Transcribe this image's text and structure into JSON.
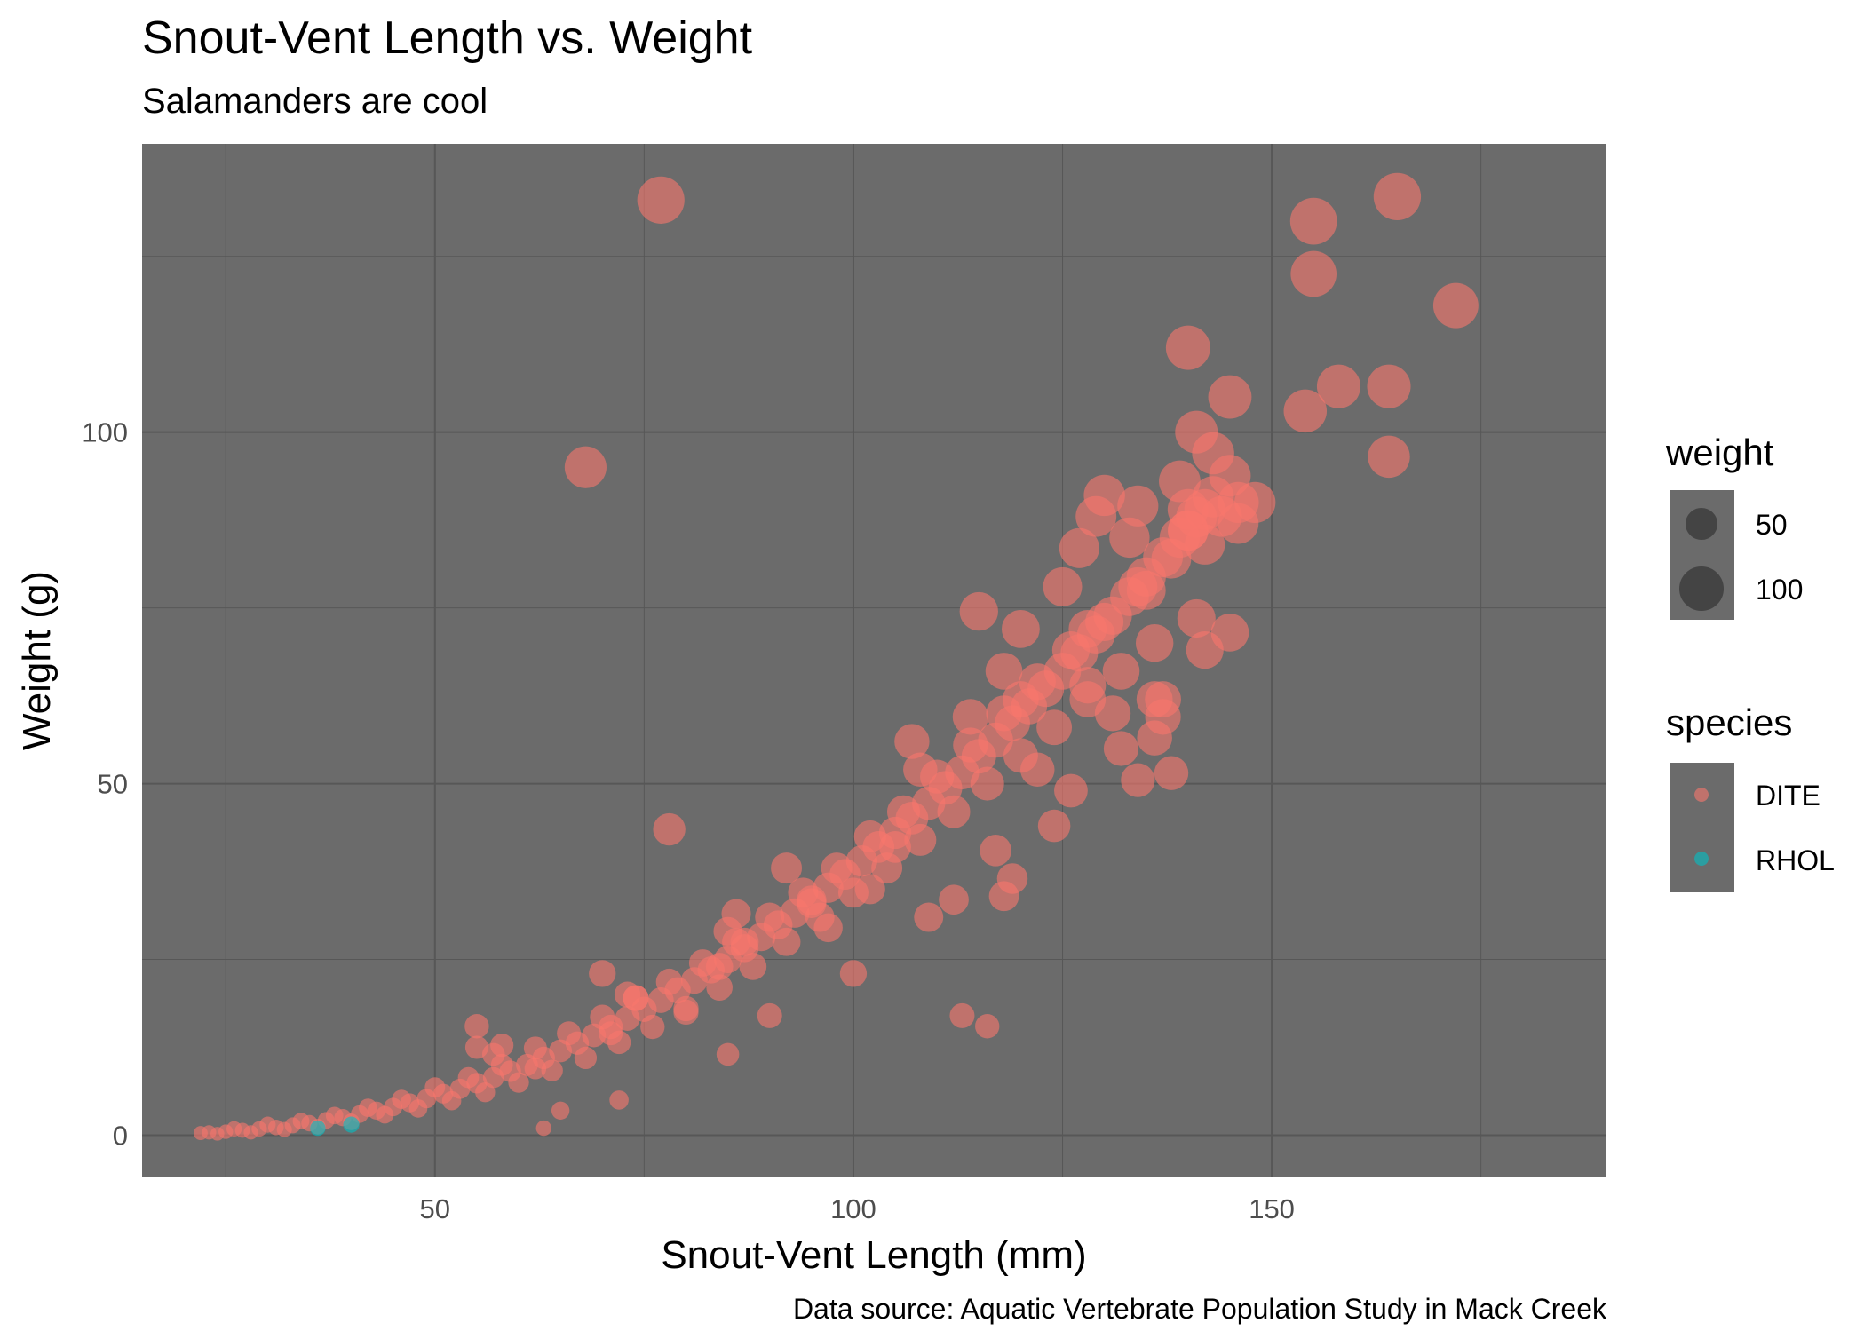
{
  "chart_data": {
    "type": "scatter",
    "title": "Snout-Vent Length vs. Weight",
    "subtitle": "Salamanders are cool",
    "xlabel": "Snout-Vent Length (mm)",
    "ylabel": "Weight (g)",
    "caption": "Data source: Aquatic Vertebrate Population Study in Mack Creek",
    "xlim": [
      15,
      190
    ],
    "ylim": [
      -6,
      141
    ],
    "x_ticks": [
      50,
      100,
      150
    ],
    "y_ticks": [
      0,
      50,
      100
    ],
    "grid": true,
    "background": "#6b6b6b",
    "grid_color": "#575757",
    "legend_position": "right",
    "size_legend": {
      "title": "weight",
      "entries": [
        {
          "label": "50",
          "value": 50
        },
        {
          "label": "100",
          "value": 100
        }
      ]
    },
    "color_legend": {
      "title": "species",
      "entries": [
        {
          "label": "DITE",
          "color": "#f8766d"
        },
        {
          "label": "RHOL",
          "color": "#00bfc4"
        }
      ]
    },
    "series": [
      {
        "name": "DITE",
        "color": "#f8766d",
        "points": [
          [
            22,
            0.3
          ],
          [
            23,
            0.4
          ],
          [
            25,
            0.5
          ],
          [
            27,
            0.7
          ],
          [
            29,
            0.9
          ],
          [
            31,
            1.1
          ],
          [
            33,
            1.4
          ],
          [
            35,
            1.7
          ],
          [
            37,
            2.1
          ],
          [
            39,
            2.5
          ],
          [
            41,
            3.0
          ],
          [
            43,
            3.5
          ],
          [
            45,
            4.0
          ],
          [
            47,
            4.6
          ],
          [
            49,
            5.2
          ],
          [
            51,
            5.9
          ],
          [
            53,
            6.6
          ],
          [
            55,
            7.4
          ],
          [
            57,
            8.2
          ],
          [
            59,
            9.1
          ],
          [
            61,
            10.0
          ],
          [
            63,
            11.0
          ],
          [
            65,
            12.0
          ],
          [
            67,
            13.1
          ],
          [
            69,
            14.2
          ],
          [
            71,
            15.4
          ],
          [
            73,
            16.6
          ],
          [
            75,
            17.9
          ],
          [
            77,
            19.2
          ],
          [
            79,
            20.6
          ],
          [
            81,
            22.0
          ],
          [
            83,
            23.5
          ],
          [
            85,
            25.0
          ],
          [
            87,
            26.6
          ],
          [
            89,
            28.2
          ],
          [
            91,
            29.9
          ],
          [
            93,
            31.6
          ],
          [
            95,
            33.4
          ],
          [
            97,
            35.2
          ],
          [
            99,
            37.1
          ],
          [
            101,
            39.0
          ],
          [
            103,
            41.0
          ],
          [
            105,
            43.0
          ],
          [
            107,
            45.1
          ],
          [
            109,
            47.2
          ],
          [
            111,
            49.4
          ],
          [
            113,
            51.6
          ],
          [
            115,
            53.9
          ],
          [
            117,
            56.2
          ],
          [
            119,
            58.6
          ],
          [
            121,
            61.0
          ],
          [
            123,
            63.5
          ],
          [
            125,
            66.0
          ],
          [
            127,
            68.6
          ],
          [
            129,
            71.2
          ],
          [
            131,
            73.9
          ],
          [
            133,
            76.6
          ],
          [
            135,
            79.4
          ],
          [
            137,
            82.2
          ],
          [
            139,
            85.0
          ],
          [
            141,
            87.9
          ],
          [
            143,
            90.8
          ],
          [
            145,
            93.8
          ],
          [
            24,
            0.2
          ],
          [
            26,
            0.9
          ],
          [
            28,
            0.4
          ],
          [
            30,
            1.5
          ],
          [
            32,
            0.8
          ],
          [
            34,
            2.0
          ],
          [
            36,
            1.2
          ],
          [
            38,
            2.8
          ],
          [
            40,
            1.9
          ],
          [
            42,
            3.9
          ],
          [
            44,
            2.9
          ],
          [
            46,
            5.1
          ],
          [
            48,
            3.8
          ],
          [
            50,
            6.8
          ],
          [
            52,
            4.9
          ],
          [
            54,
            8.2
          ],
          [
            56,
            6.1
          ],
          [
            58,
            10.0
          ],
          [
            60,
            7.5
          ],
          [
            62,
            12.4
          ],
          [
            64,
            9.2
          ],
          [
            66,
            14.5
          ],
          [
            68,
            11.0
          ],
          [
            70,
            16.8
          ],
          [
            72,
            13.2
          ],
          [
            74,
            19.5
          ],
          [
            76,
            15.4
          ],
          [
            78,
            21.8
          ],
          [
            80,
            18.0
          ],
          [
            82,
            24.5
          ],
          [
            84,
            21.0
          ],
          [
            86,
            27.5
          ],
          [
            88,
            24.0
          ],
          [
            90,
            31.0
          ],
          [
            92,
            27.5
          ],
          [
            94,
            34.5
          ],
          [
            96,
            31.0
          ],
          [
            98,
            38.0
          ],
          [
            100,
            34.5
          ],
          [
            102,
            42.5
          ],
          [
            104,
            38.0
          ],
          [
            106,
            46.0
          ],
          [
            108,
            42.0
          ],
          [
            110,
            51.0
          ],
          [
            112,
            46.0
          ],
          [
            114,
            55.5
          ],
          [
            116,
            50.0
          ],
          [
            118,
            60.0
          ],
          [
            120,
            54.0
          ],
          [
            122,
            64.5
          ],
          [
            124,
            58.0
          ],
          [
            126,
            69.0
          ],
          [
            128,
            62.0
          ],
          [
            130,
            73.0
          ],
          [
            132,
            66.0
          ],
          [
            134,
            78.0
          ],
          [
            136,
            70.0
          ],
          [
            138,
            82.0
          ],
          [
            140,
            86.0
          ],
          [
            142,
            89.0
          ],
          [
            55,
            15.5
          ],
          [
            55,
            12.5
          ],
          [
            57,
            11.5
          ],
          [
            58,
            12.8
          ],
          [
            62,
            9.5
          ],
          [
            63,
            1.0
          ],
          [
            65,
            3.5
          ],
          [
            70,
            23.0
          ],
          [
            71,
            14.5
          ],
          [
            72,
            5.0
          ],
          [
            73,
            20.0
          ],
          [
            74,
            19.5
          ],
          [
            78,
            43.5
          ],
          [
            80,
            17.5
          ],
          [
            84,
            24.0
          ],
          [
            85,
            11.5
          ],
          [
            85,
            29.0
          ],
          [
            86,
            31.5
          ],
          [
            87,
            27.5
          ],
          [
            90,
            17.0
          ],
          [
            92,
            38.0
          ],
          [
            95,
            33.0
          ],
          [
            97,
            29.5
          ],
          [
            100,
            23.0
          ],
          [
            102,
            35.0
          ],
          [
            105,
            41.0
          ],
          [
            107,
            56.0
          ],
          [
            108,
            52.0
          ],
          [
            109,
            31.0
          ],
          [
            112,
            33.5
          ],
          [
            113,
            17.0
          ],
          [
            114,
            59.5
          ],
          [
            115,
            74.5
          ],
          [
            116,
            15.5
          ],
          [
            117,
            40.5
          ],
          [
            118,
            66.0
          ],
          [
            118,
            34.0
          ],
          [
            119,
            36.5
          ],
          [
            120,
            72.0
          ],
          [
            120,
            62.0
          ],
          [
            122,
            52.0
          ],
          [
            124,
            44.0
          ],
          [
            125,
            78.0
          ],
          [
            126,
            49.0
          ],
          [
            127,
            83.5
          ],
          [
            128,
            72.0
          ],
          [
            128,
            64.0
          ],
          [
            129,
            88.0
          ],
          [
            130,
            91.0
          ],
          [
            131,
            60.0
          ],
          [
            132,
            55.0
          ],
          [
            133,
            85.0
          ],
          [
            134,
            89.5
          ],
          [
            135,
            77.5
          ],
          [
            134,
            50.5
          ],
          [
            136,
            62.0
          ],
          [
            136,
            56.5
          ],
          [
            137,
            59.5
          ],
          [
            137,
            62.0
          ],
          [
            138,
            51.5
          ],
          [
            139,
            93.0
          ],
          [
            140,
            89.0
          ],
          [
            140,
            86.0
          ],
          [
            141,
            73.5
          ],
          [
            142,
            84.0
          ],
          [
            142,
            69.0
          ],
          [
            143,
            97.0
          ],
          [
            144,
            88.0
          ],
          [
            145,
            71.5
          ],
          [
            146,
            87.0
          ],
          [
            146,
            90.0
          ],
          [
            148,
            90.0
          ],
          [
            140,
            112.0
          ],
          [
            141,
            100.0
          ],
          [
            145,
            105.0
          ],
          [
            154,
            103.0
          ],
          [
            158,
            106.5
          ],
          [
            164,
            106.5
          ],
          [
            164,
            96.5
          ],
          [
            155,
            130.0
          ],
          [
            155,
            122.5
          ],
          [
            165,
            133.5
          ],
          [
            172,
            118.0
          ],
          [
            77,
            133.0
          ],
          [
            68,
            95.0
          ]
        ]
      },
      {
        "name": "RHOL",
        "color": "#00bfc4",
        "points": [
          [
            40,
            1.5
          ],
          [
            36,
            1.0
          ]
        ]
      }
    ]
  }
}
